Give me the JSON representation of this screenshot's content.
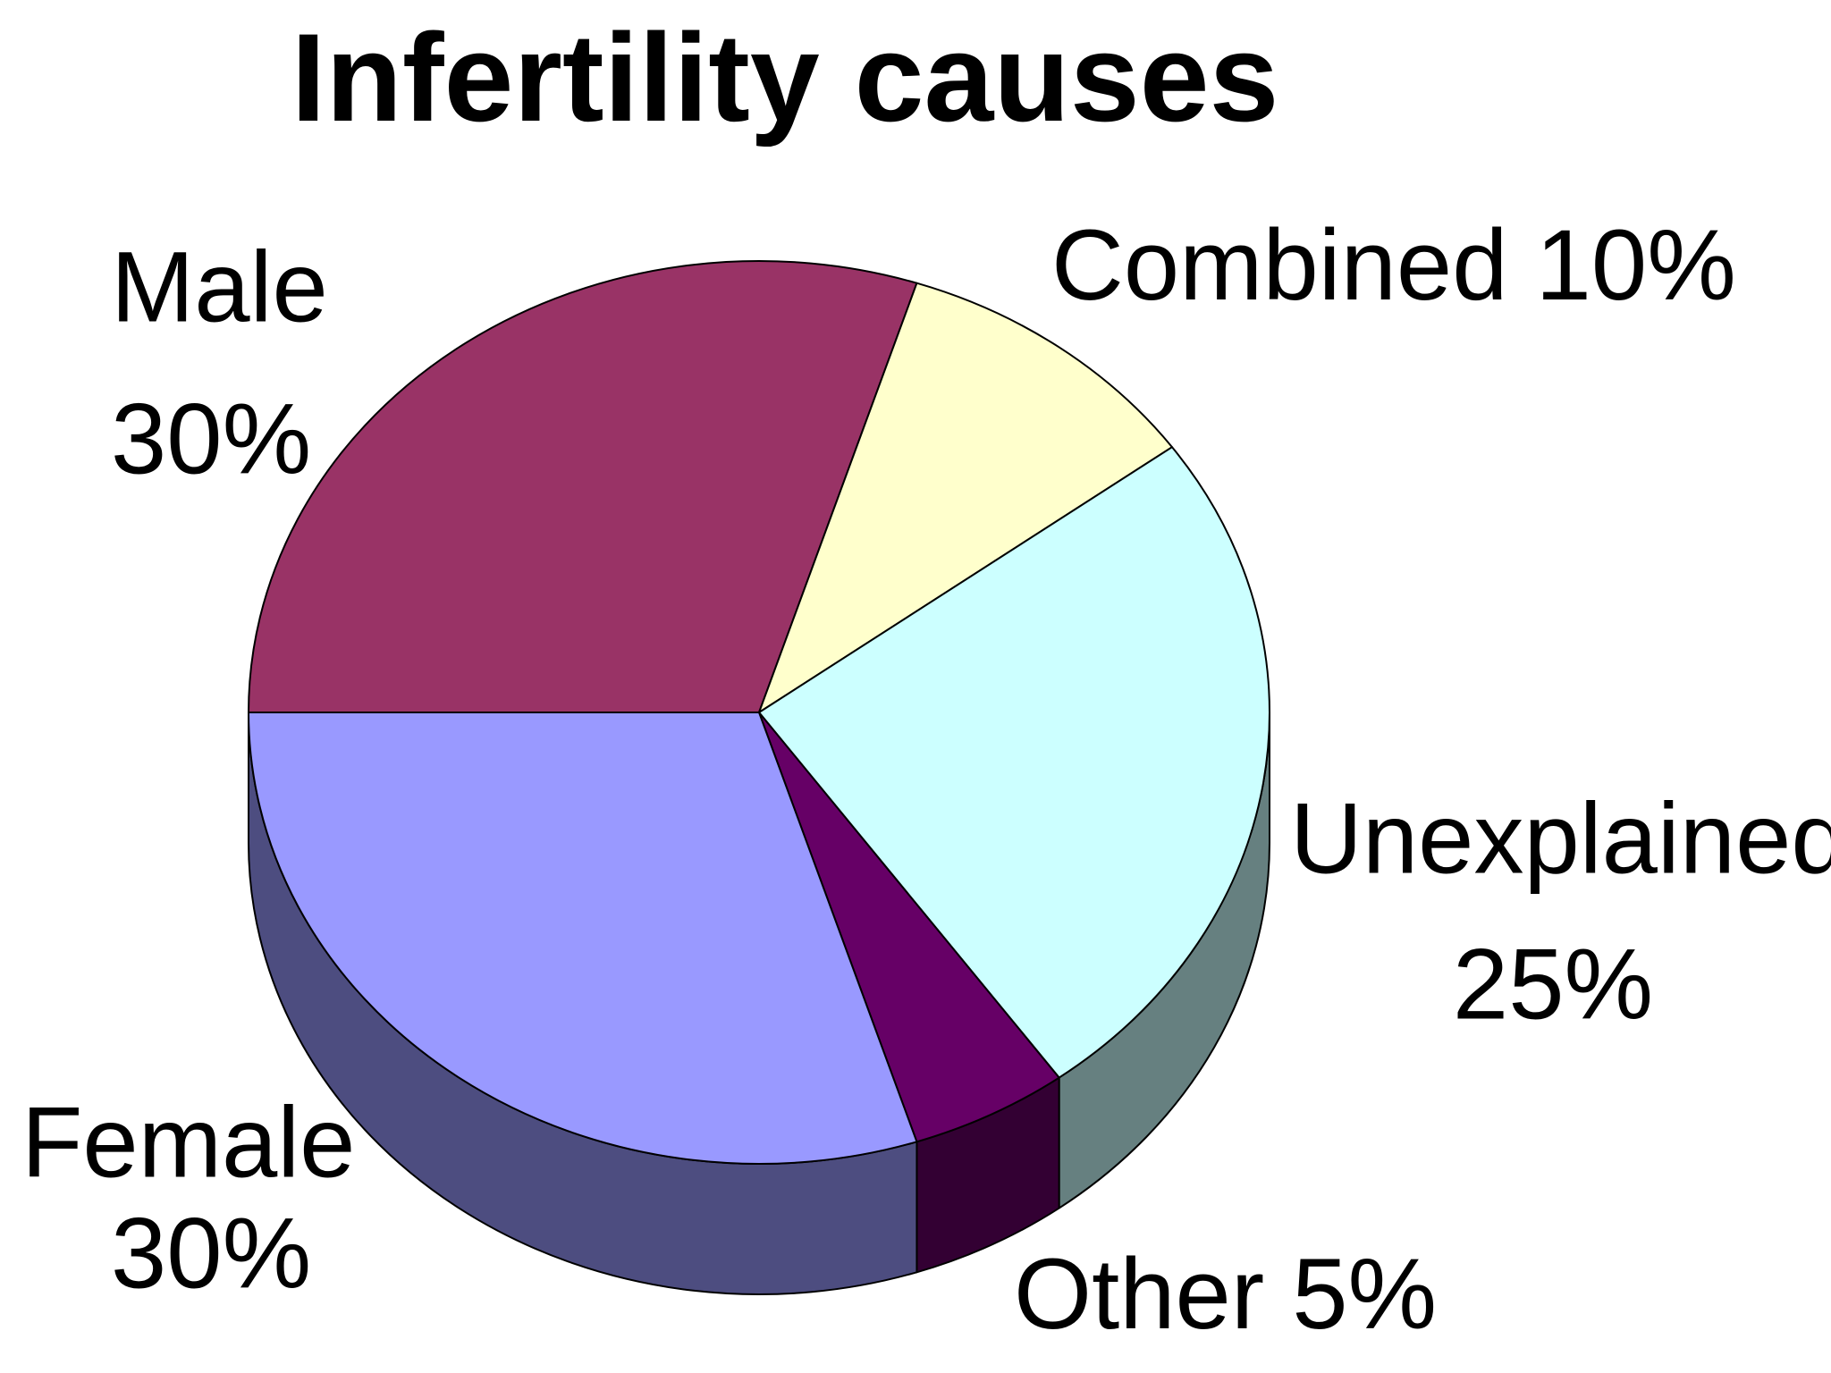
{
  "chart_data": {
    "type": "pie",
    "title": "Infertility causes",
    "categories": [
      "Male",
      "Combined",
      "Unexplained",
      "Other",
      "Female"
    ],
    "values": [
      30,
      10,
      25,
      5,
      30
    ],
    "value_labels": [
      "30%",
      "10%",
      "25%",
      "5%",
      "30%"
    ],
    "colors": [
      "#993366",
      "#ffffcc",
      "#ccffff",
      "#660066",
      "#9999ff"
    ],
    "three_d": true
  }
}
